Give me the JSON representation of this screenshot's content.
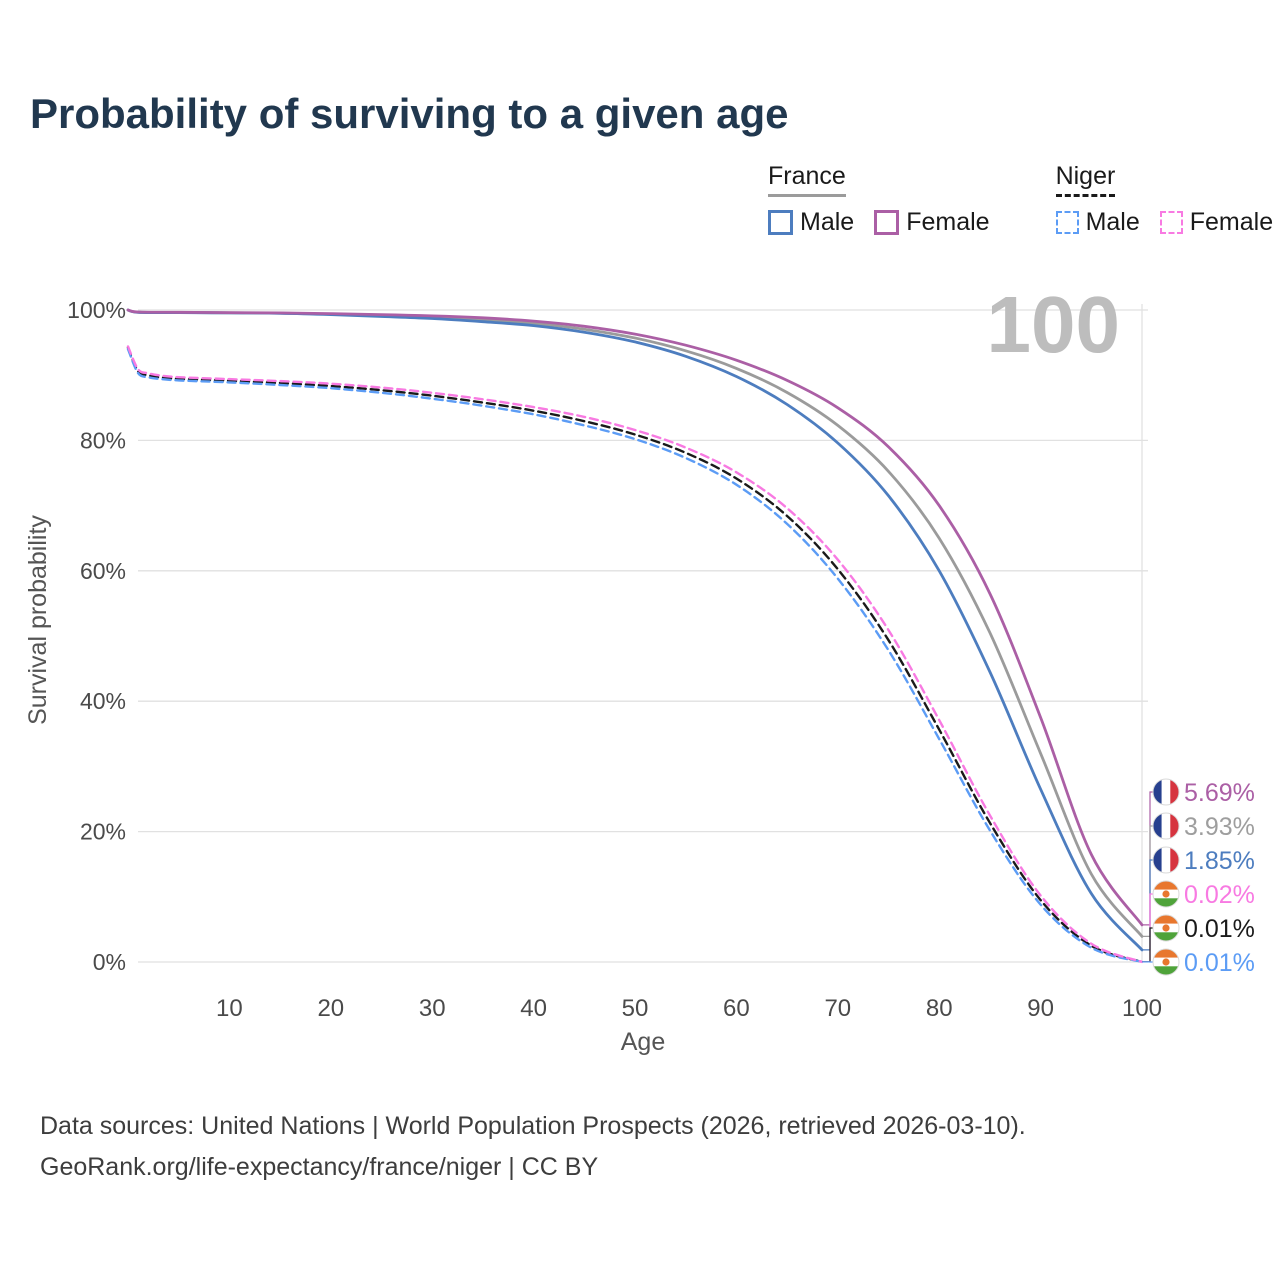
{
  "title": "Probability of surviving to a given age",
  "watermark": "100",
  "legend": {
    "groups": [
      {
        "label": "France",
        "line_style": "solid",
        "line_color": "#9b9b9b",
        "items": [
          {
            "label": "Male",
            "color": "#4d7dbf",
            "dashed": false
          },
          {
            "label": "Female",
            "color": "#ab5fa5",
            "dashed": false
          }
        ]
      },
      {
        "label": "Niger",
        "line_style": "dashed",
        "line_color": "#1a1a1a",
        "items": [
          {
            "label": "Male",
            "color": "#5c9cf5",
            "dashed": true
          },
          {
            "label": "Female",
            "color": "#f87ae2",
            "dashed": true
          }
        ]
      }
    ]
  },
  "chart_data": {
    "type": "line",
    "title": "Probability of surviving to a given age",
    "xlabel": "Age",
    "ylabel": "Survival probability",
    "xlim": [
      0,
      100
    ],
    "ylim": [
      0,
      100
    ],
    "x_ticks": [
      10,
      20,
      30,
      40,
      50,
      60,
      70,
      80,
      90,
      100
    ],
    "y_ticks": [
      0,
      20,
      40,
      60,
      80,
      100
    ],
    "y_tick_suffix": "%",
    "grid": "horizontal",
    "series": [
      {
        "id": "france-both",
        "name": "France (both sexes)",
        "color": "#9b9b9b",
        "dashed": false,
        "flag": "france",
        "x": [
          0,
          1,
          5,
          10,
          15,
          20,
          25,
          30,
          35,
          40,
          45,
          50,
          55,
          60,
          65,
          70,
          75,
          80,
          85,
          90,
          95,
          100
        ],
        "y": [
          100,
          99.67,
          99.62,
          99.57,
          99.52,
          99.37,
          99.15,
          98.9,
          98.5,
          97.95,
          97.05,
          95.7,
          93.75,
          91.05,
          87.35,
          82.3,
          75.25,
          65.0,
          50.5,
          32.0,
          13.5,
          3.93
        ]
      },
      {
        "id": "france-male",
        "name": "France Male",
        "color": "#4d7dbf",
        "dashed": false,
        "flag": "france",
        "x": [
          0,
          1,
          5,
          10,
          15,
          20,
          25,
          30,
          35,
          40,
          45,
          50,
          55,
          60,
          65,
          70,
          75,
          80,
          85,
          90,
          95,
          100
        ],
        "y": [
          100,
          99.65,
          99.6,
          99.55,
          99.5,
          99.3,
          99.0,
          98.7,
          98.2,
          97.6,
          96.6,
          95.1,
          92.9,
          89.8,
          85.5,
          79.6,
          71.5,
          60.0,
          44.5,
          26.5,
          10.5,
          1.85
        ]
      },
      {
        "id": "france-female",
        "name": "France Female",
        "color": "#ab5fa5",
        "dashed": false,
        "flag": "france",
        "x": [
          0,
          1,
          5,
          10,
          15,
          20,
          25,
          30,
          35,
          40,
          45,
          50,
          55,
          60,
          65,
          70,
          75,
          80,
          85,
          90,
          95,
          100
        ],
        "y": [
          100,
          99.7,
          99.65,
          99.6,
          99.55,
          99.45,
          99.3,
          99.1,
          98.8,
          98.3,
          97.5,
          96.3,
          94.6,
          92.3,
          89.2,
          85.0,
          79.0,
          70.0,
          56.5,
          37.5,
          16.5,
          5.69
        ]
      },
      {
        "id": "niger-both",
        "name": "Niger (both sexes)",
        "color": "#1a1a1a",
        "dashed": true,
        "flag": "niger",
        "x": [
          0,
          1,
          2,
          3,
          5,
          10,
          15,
          20,
          25,
          30,
          35,
          40,
          45,
          50,
          55,
          60,
          65,
          70,
          75,
          80,
          85,
          90,
          95,
          100
        ],
        "y": [
          94.2,
          90.6,
          90.0,
          89.7,
          89.45,
          89.15,
          88.8,
          88.35,
          87.7,
          86.85,
          85.8,
          84.55,
          82.95,
          80.9,
          78.1,
          74.15,
          68.4,
          60.25,
          49.35,
          35.65,
          21.35,
          9.5,
          2.5,
          0.01
        ]
      },
      {
        "id": "niger-male",
        "name": "Niger Male",
        "color": "#5c9cf5",
        "dashed": true,
        "flag": "niger",
        "x": [
          0,
          1,
          2,
          3,
          5,
          10,
          15,
          20,
          25,
          30,
          35,
          40,
          45,
          50,
          55,
          60,
          65,
          70,
          75,
          80,
          85,
          90,
          95,
          100
        ],
        "y": [
          94.0,
          90.3,
          89.7,
          89.45,
          89.2,
          88.9,
          88.5,
          88.0,
          87.3,
          86.4,
          85.3,
          84.0,
          82.3,
          80.2,
          77.3,
          73.2,
          67.2,
          58.8,
          47.8,
          34.2,
          20.2,
          8.8,
          2.2,
          0.01
        ]
      },
      {
        "id": "niger-female",
        "name": "Niger Female",
        "color": "#f87ae2",
        "dashed": true,
        "flag": "niger",
        "x": [
          0,
          1,
          2,
          3,
          5,
          10,
          15,
          20,
          25,
          30,
          35,
          40,
          45,
          50,
          55,
          60,
          65,
          70,
          75,
          80,
          85,
          90,
          95,
          100
        ],
        "y": [
          94.4,
          90.9,
          90.3,
          90.0,
          89.7,
          89.4,
          89.1,
          88.7,
          88.1,
          87.3,
          86.3,
          85.1,
          83.6,
          81.6,
          78.9,
          75.1,
          69.6,
          61.7,
          50.9,
          37.1,
          22.5,
          10.2,
          2.8,
          0.02
        ]
      }
    ]
  },
  "end_labels": [
    {
      "series_id": "france-female",
      "text": "5.69%",
      "color": "#ab5fa5",
      "flag": "france"
    },
    {
      "series_id": "france-both",
      "text": "3.93%",
      "color": "#9e9e9e",
      "flag": "france"
    },
    {
      "series_id": "france-male",
      "text": "1.85%",
      "color": "#4d7dbf",
      "flag": "france"
    },
    {
      "series_id": "niger-female",
      "text": "0.02%",
      "color": "#f87ae2",
      "flag": "niger"
    },
    {
      "series_id": "niger-both",
      "text": "0.01%",
      "color": "#1a1a1a",
      "flag": "niger"
    },
    {
      "series_id": "niger-male",
      "text": "0.01%",
      "color": "#5c9cf5",
      "flag": "niger"
    }
  ],
  "footer": {
    "line1": "Data sources: United Nations | World Population Prospects (2026, retrieved 2026-03-10).",
    "line2": "GeoRank.org/life-expectancy/france/niger | CC BY"
  }
}
